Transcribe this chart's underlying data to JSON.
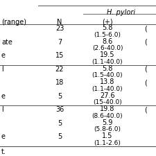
{
  "col1_header": "(range)",
  "col2_header": "N",
  "col3_header": "H. pylori",
  "col3_sub": "(+)",
  "rows": [
    {
      "label": "",
      "N": "23",
      "plus_main": "5.8",
      "plus_range": "(1.5-6.0)",
      "has_minus": true
    },
    {
      "label": "ate",
      "N": "7",
      "plus_main": "8.6",
      "plus_range": "(2.6-40.0)",
      "has_minus": true
    },
    {
      "label": "e",
      "N": "15",
      "plus_main": "19.5",
      "plus_range": "(1.1-40.0)",
      "has_minus": false
    },
    {
      "label": "l",
      "N": "22",
      "plus_main": "5.8",
      "plus_range": "(1.5-40.0)",
      "has_minus": true
    },
    {
      "label": "",
      "N": "18",
      "plus_main": "13.8",
      "plus_range": "(1.1-40.0)",
      "has_minus": true
    },
    {
      "label": "e",
      "N": "5",
      "plus_main": "27.6",
      "plus_range": "(15-40.0)",
      "has_minus": false
    },
    {
      "label": "l",
      "N": "36",
      "plus_main": "19.8",
      "plus_range": "(8.6-40.0)",
      "has_minus": true
    },
    {
      "label": "",
      "N": "5",
      "plus_main": "5.9",
      "plus_range": "(5.8-6.0)",
      "has_minus": false
    },
    {
      "label": "e",
      "N": "5",
      "plus_main": "1.5",
      "plus_range": "(1.1-2.6)",
      "has_minus": false
    }
  ],
  "group_separators_after": [
    2,
    5
  ],
  "footer": "t.",
  "bg_color": "#ffffff",
  "text_color": "#000000",
  "line_color": "#555555",
  "fs": 7.0
}
